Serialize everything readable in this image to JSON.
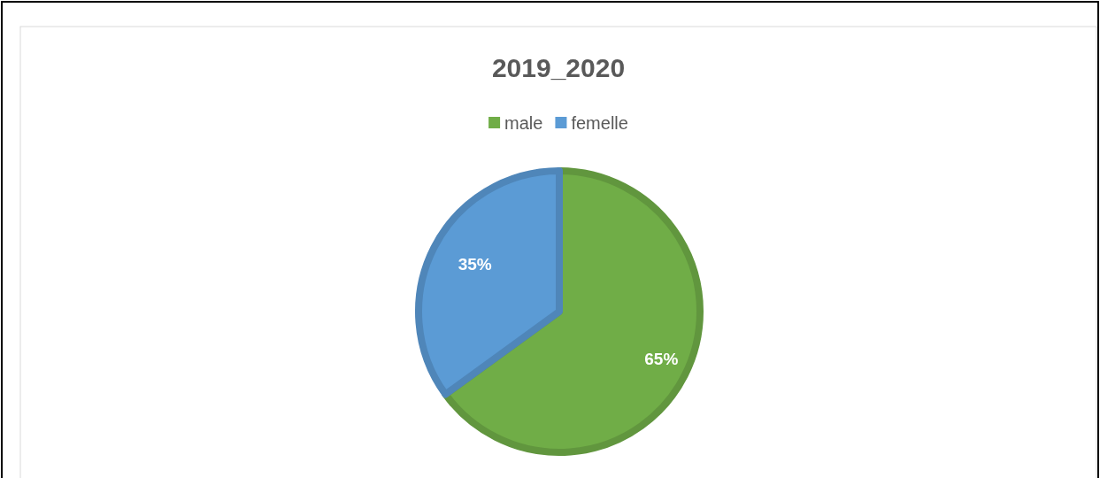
{
  "chart_data": {
    "type": "pie",
    "title": "2019_2020",
    "categories": [
      "male",
      "femelle"
    ],
    "values": [
      65,
      35
    ],
    "colors": [
      "#70ad47",
      "#5b9bd5"
    ],
    "value_labels": [
      "65%",
      "35%"
    ],
    "legend": "top"
  }
}
